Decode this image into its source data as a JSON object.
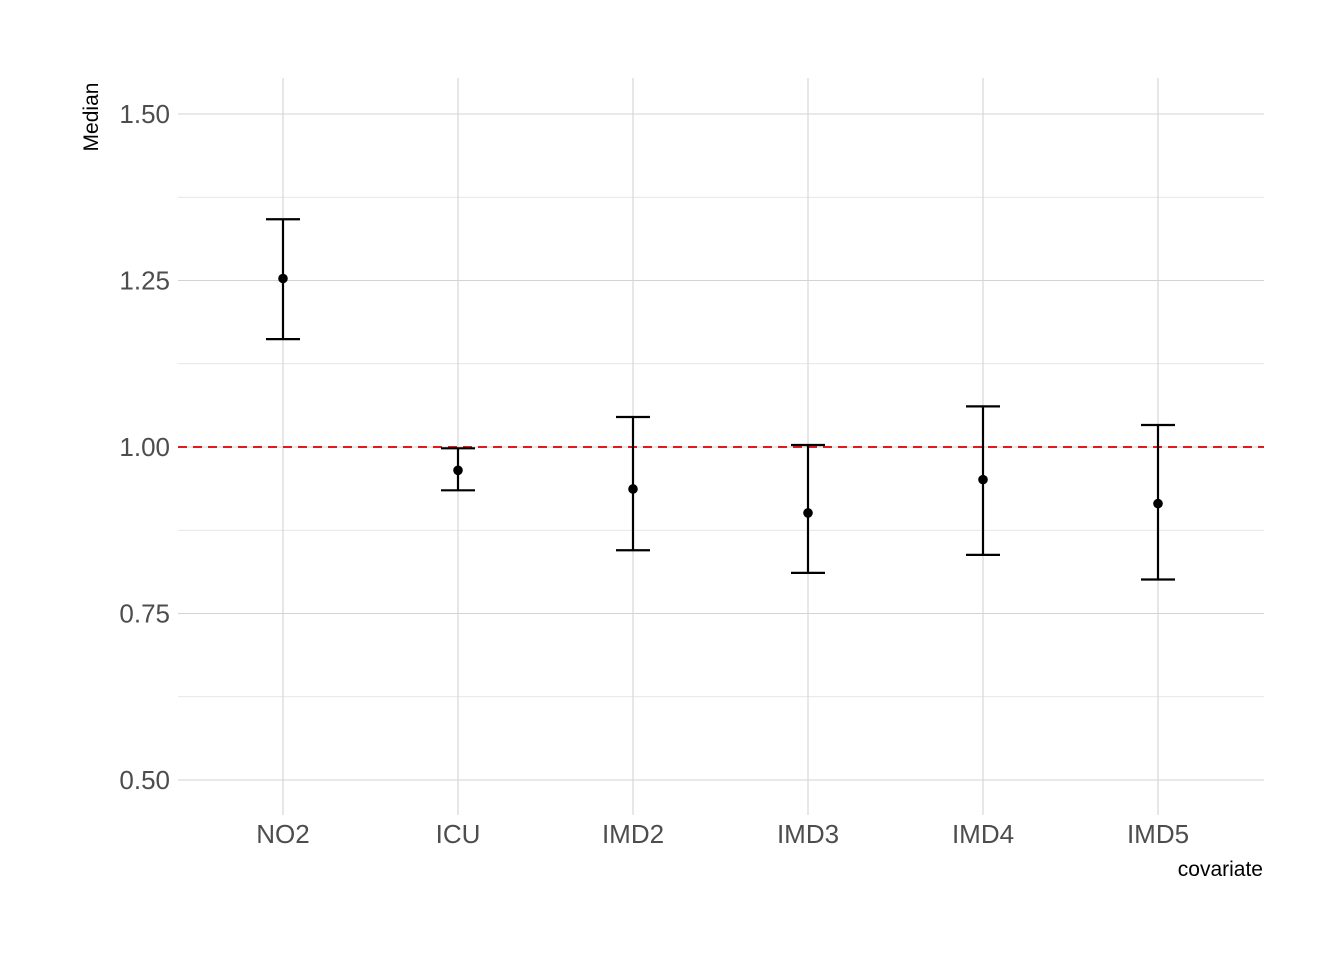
{
  "chart_data": {
    "type": "scatter",
    "title": "",
    "xlabel": "covariate",
    "ylabel": "Median",
    "categories": [
      "NO2",
      "ICU",
      "IMD2",
      "IMD3",
      "IMD4",
      "IMD5"
    ],
    "median": [
      1.253,
      0.965,
      0.937,
      0.901,
      0.951,
      0.915
    ],
    "lower": [
      1.162,
      0.935,
      0.845,
      0.811,
      0.838,
      0.801
    ],
    "upper": [
      1.342,
      0.998,
      1.045,
      1.003,
      1.061,
      1.033
    ],
    "ylim": [
      0.45,
      1.55
    ],
    "yticks": [
      0.5,
      0.75,
      1.0,
      1.25,
      1.5
    ],
    "ytick_labels": [
      "0.50",
      "0.75",
      "1.00",
      "1.25",
      "1.50"
    ],
    "y_minor_ticks": [
      0.625,
      0.875,
      1.125,
      1.375
    ],
    "reference_line": {
      "y": 1.0,
      "color": "#e31a1c",
      "style": "dashed"
    },
    "grid": true,
    "legend": "none"
  }
}
